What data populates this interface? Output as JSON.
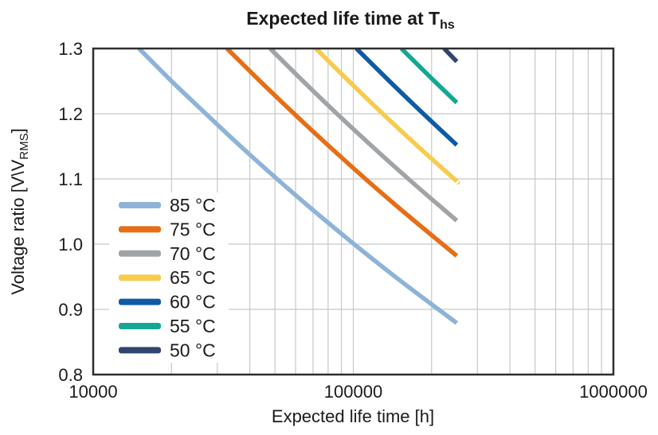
{
  "title": {
    "text": "Expected life time at T",
    "subscript": "hs"
  },
  "y_axis": {
    "label_prefix": "Voltage ratio [V\\V",
    "label_sub": "RMS",
    "label_suffix": "]",
    "ticks": [
      {
        "value": 1.3,
        "label": "1.3"
      },
      {
        "value": 1.2,
        "label": "1.2"
      },
      {
        "value": 1.1,
        "label": "1.1"
      },
      {
        "value": 1.0,
        "label": "1.0"
      },
      {
        "value": 0.9,
        "label": "0.9"
      },
      {
        "value": 0.8,
        "label": "0.8"
      }
    ]
  },
  "x_axis": {
    "label": "Expected life time [h]",
    "ticks": [
      {
        "value": 10000,
        "label": "10000"
      },
      {
        "value": 100000,
        "label": "100000"
      },
      {
        "value": 1000000,
        "label": "1000000"
      }
    ]
  },
  "colors": {
    "grid": "#c6c8ca",
    "border": "#2e2e2e",
    "text": "#1a1a1a",
    "legend_background": "#ffffff"
  },
  "chart_data": {
    "type": "line",
    "title": "Expected life time at T_hs",
    "xlabel": "Expected life time [h]",
    "ylabel": "Voltage ratio [V\\V_RMS]",
    "x_scale": "log",
    "xlim": [
      10000,
      1000000
    ],
    "ylim": [
      0.8,
      1.3
    ],
    "grid": true,
    "legend_position": "inside lower left",
    "series": [
      {
        "name": "85 °C",
        "color": "#8db3d8",
        "points": [
          [
            15000,
            1.3
          ],
          [
            20000,
            1.25
          ],
          [
            27100,
            1.2
          ],
          [
            36900,
            1.15
          ],
          [
            50900,
            1.1
          ],
          [
            71100,
            1.05
          ],
          [
            100700,
            1.0
          ],
          [
            144900,
            0.95
          ],
          [
            212400,
            0.9
          ],
          [
            250000,
            0.879
          ]
        ]
      },
      {
        "name": "75 °C",
        "color": "#e66e17",
        "points": [
          [
            32700,
            1.3
          ],
          [
            43800,
            1.25
          ],
          [
            59200,
            1.2
          ],
          [
            80800,
            1.15
          ],
          [
            111400,
            1.1
          ],
          [
            155600,
            1.05
          ],
          [
            220300,
            1.0
          ],
          [
            250000,
            0.982
          ]
        ]
      },
      {
        "name": "70 °C",
        "color": "#a1a4a7",
        "points": [
          [
            47900,
            1.3
          ],
          [
            64100,
            1.25
          ],
          [
            86500,
            1.2
          ],
          [
            118100,
            1.15
          ],
          [
            162900,
            1.1
          ],
          [
            227500,
            1.05
          ],
          [
            250000,
            1.036
          ]
        ]
      },
      {
        "name": "65 °C",
        "color": "#f7cb4d",
        "points": [
          [
            71800,
            1.3
          ],
          [
            96100,
            1.25
          ],
          [
            129800,
            1.2
          ],
          [
            177100,
            1.15
          ],
          [
            244200,
            1.1
          ],
          [
            250000,
            1.096
          ]
        ]
      },
      {
        "name": "60 °C",
        "color": "#0e5aa5",
        "points": [
          [
            102800,
            1.3
          ],
          [
            137600,
            1.25
          ],
          [
            185900,
            1.2
          ],
          [
            250000,
            1.152
          ]
        ]
      },
      {
        "name": "55 °C",
        "color": "#12a893",
        "points": [
          [
            153100,
            1.3
          ],
          [
            205000,
            1.25
          ],
          [
            250000,
            1.217
          ]
        ]
      },
      {
        "name": "50 °C",
        "color": "#30456f",
        "points": [
          [
            223400,
            1.3
          ],
          [
            250000,
            1.28
          ]
        ]
      }
    ]
  }
}
